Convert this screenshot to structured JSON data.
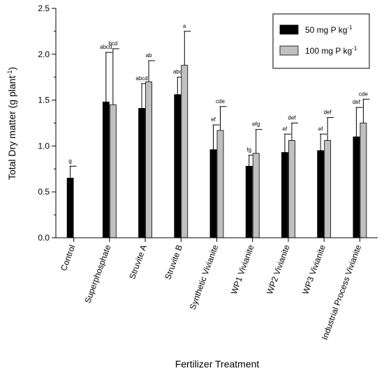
{
  "chart_data": {
    "type": "bar",
    "xlabel": "Fertilizer Treatment",
    "ylabel": "Total Dry matter (g plant",
    "ylabel_sup": "-1",
    "ylabel_close": ")",
    "ylim": [
      0,
      2.5
    ],
    "yticks": [
      "0.0",
      "0.5",
      "1.0",
      "1.5",
      "2.0",
      "2.5"
    ],
    "legend_position": "top-right",
    "categories": [
      "Control",
      "Superphosphate",
      "Struvite A",
      "Struvite B",
      "Synthetic Vivianite",
      "WP1 Vivianite",
      "WP2 Vivianite",
      "WP3 Vivianite",
      "Industrial Process Vivianite"
    ],
    "series": [
      {
        "name": "50 mg P kg",
        "name_sup": "-1",
        "color": "#000000",
        "values": [
          0.65,
          1.48,
          1.41,
          1.56,
          0.96,
          0.78,
          0.93,
          0.95,
          1.1
        ],
        "errors": [
          0.13,
          0.54,
          0.27,
          0.19,
          0.27,
          0.12,
          0.2,
          0.18,
          0.32
        ],
        "labels": [
          "g",
          "abcd",
          "abcd",
          "abc",
          "ef",
          "fg",
          "ef",
          "ef",
          "def"
        ]
      },
      {
        "name": "100 mg P kg",
        "name_sup": "-1",
        "color": "#c0c0c0",
        "values": [
          null,
          1.45,
          1.7,
          1.88,
          1.17,
          0.92,
          1.06,
          1.06,
          1.25
        ],
        "errors": [
          null,
          0.61,
          0.23,
          0.37,
          0.26,
          0.26,
          0.19,
          0.25,
          0.26
        ],
        "labels": [
          null,
          "bcd",
          "ab",
          "a",
          "cde",
          "efg",
          "def",
          "def",
          "cde"
        ]
      }
    ]
  }
}
